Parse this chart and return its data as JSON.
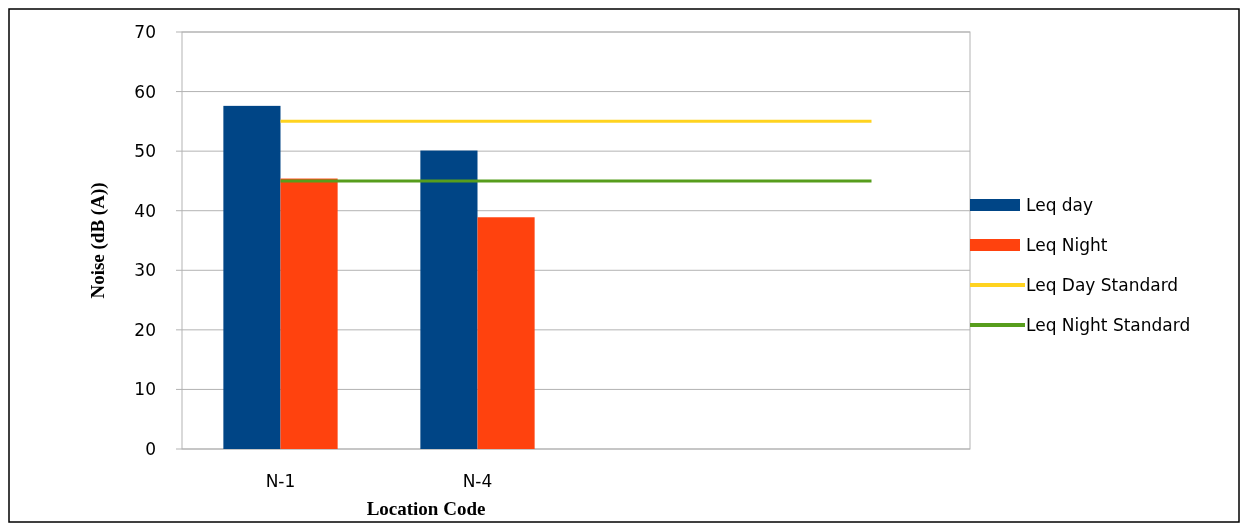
{
  "chart_data": {
    "type": "bar",
    "xlabel": "Location Code",
    "ylabel": "Noise (dB (A))",
    "categories": [
      "N-1",
      "N-4",
      null,
      null
    ],
    "series": [
      {
        "name": "Leq day",
        "color": "#004586",
        "values": [
          57.6,
          50.1,
          null,
          null
        ]
      },
      {
        "name": "Leq Night",
        "color": "#ff420e",
        "values": [
          45.4,
          38.9,
          null,
          null
        ]
      },
      {
        "name": "Leq Day Standard",
        "type": "line",
        "color": "#ffd320",
        "values": [
          55,
          55,
          55,
          55
        ]
      },
      {
        "name": "Leq Night Standard",
        "type": "line",
        "color": "#579d1c",
        "values": [
          45,
          45,
          45,
          45
        ]
      }
    ],
    "ylim": [
      0,
      70
    ],
    "yticks": [
      0,
      10,
      20,
      30,
      40,
      50,
      60,
      70
    ],
    "grid": "y",
    "legend": "right",
    "marker": "none"
  }
}
